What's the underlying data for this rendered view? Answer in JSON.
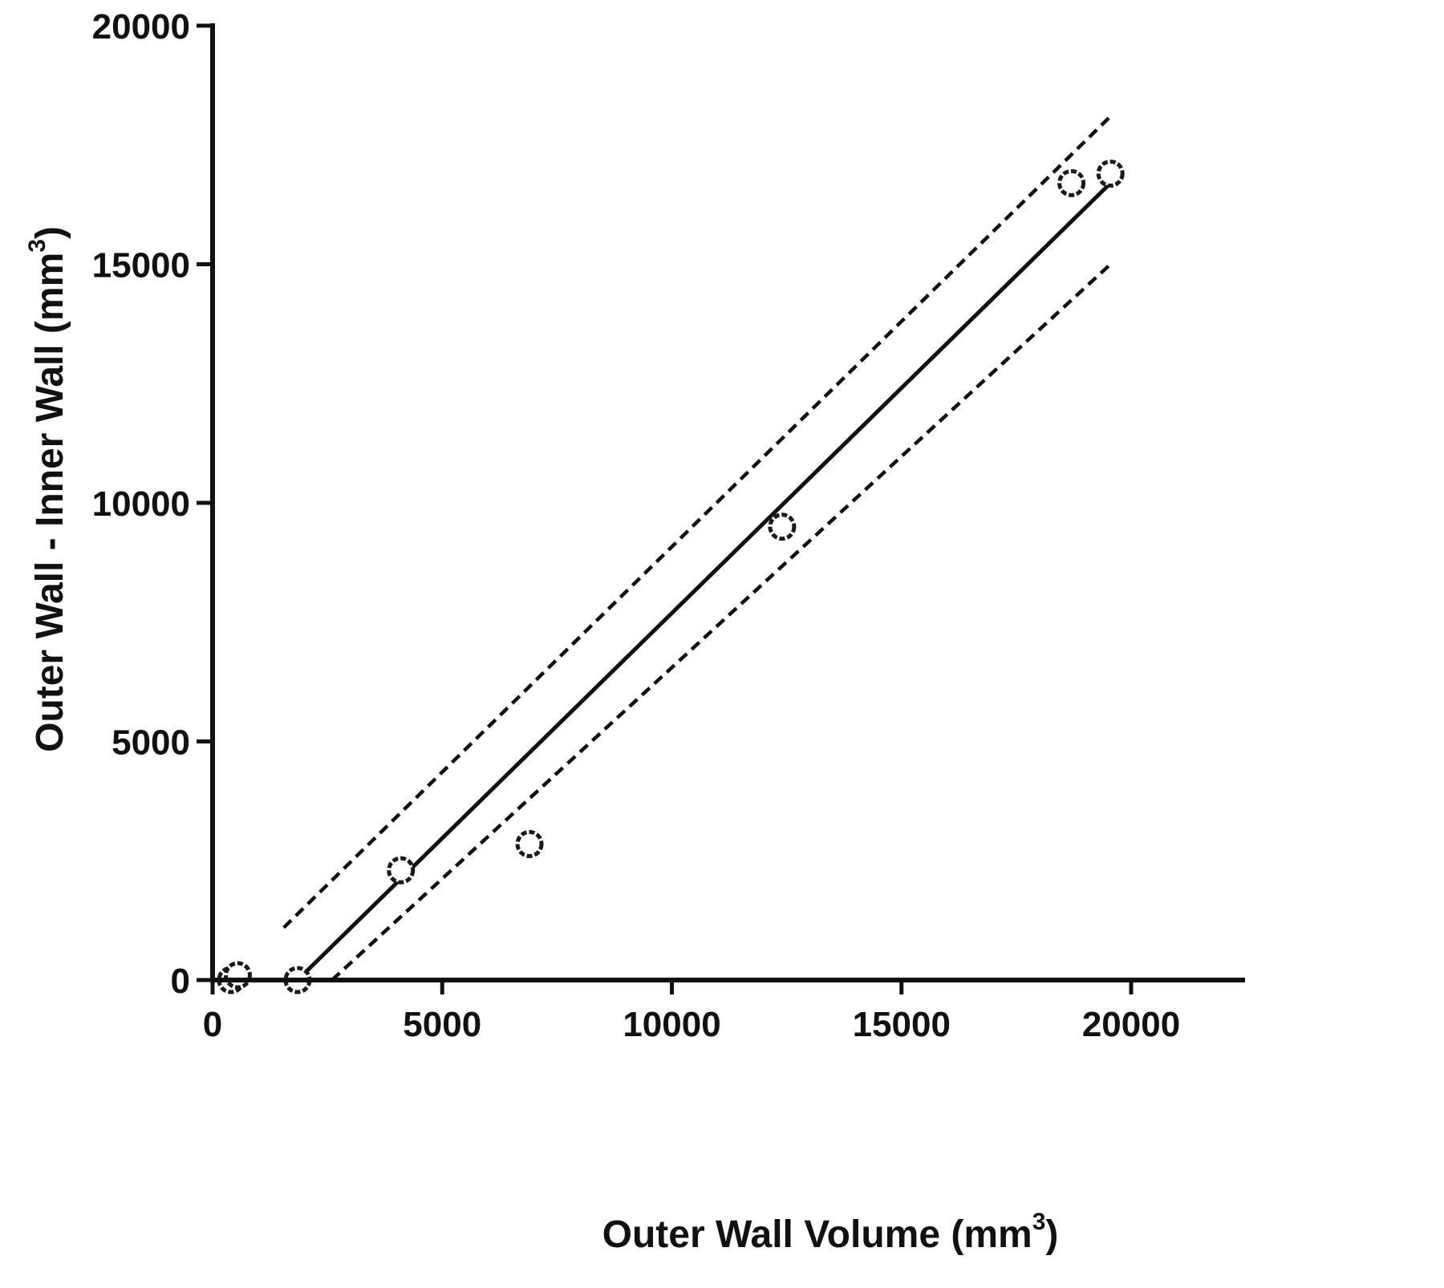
{
  "chart_data": {
    "type": "scatter",
    "title": "",
    "xlabel": "Outer Wall Volume (mm",
    "xlabel_unit_sup": "3",
    "xlabel_close": ")",
    "ylabel": "Outer Wall - Inner Wall (mm",
    "ylabel_unit_sup": "3",
    "ylabel_close": ")",
    "xlim": [
      0,
      22500
    ],
    "ylim": [
      0,
      20000
    ],
    "x_ticks": [
      0,
      5000,
      10000,
      15000,
      20000
    ],
    "x_tick_labels": [
      "0",
      "5000",
      "10000",
      "15000",
      "20000"
    ],
    "y_ticks": [
      0,
      5000,
      10000,
      15000,
      20000
    ],
    "y_tick_labels": [
      "0",
      "5000",
      "10000",
      "15000",
      "20000"
    ],
    "grid": false,
    "legend": "none",
    "points": [
      {
        "x": 400,
        "y": 0
      },
      {
        "x": 550,
        "y": 100
      },
      {
        "x": 1850,
        "y": 0
      },
      {
        "x": 4100,
        "y": 2300
      },
      {
        "x": 6900,
        "y": 2850
      },
      {
        "x": 12400,
        "y": 9500
      },
      {
        "x": 18700,
        "y": 16700
      },
      {
        "x": 19550,
        "y": 16900
      }
    ],
    "fit_line": {
      "x": [
        1850,
        19550
      ],
      "y": [
        0,
        16700
      ]
    },
    "upper_band": {
      "x": [
        1550,
        19550
      ],
      "y": [
        1100,
        18100
      ]
    },
    "lower_band": {
      "x": [
        2600,
        19550
      ],
      "y": [
        0,
        15000
      ]
    },
    "colors": {
      "ink": "#111111",
      "marker": "#1a1a1a"
    }
  }
}
